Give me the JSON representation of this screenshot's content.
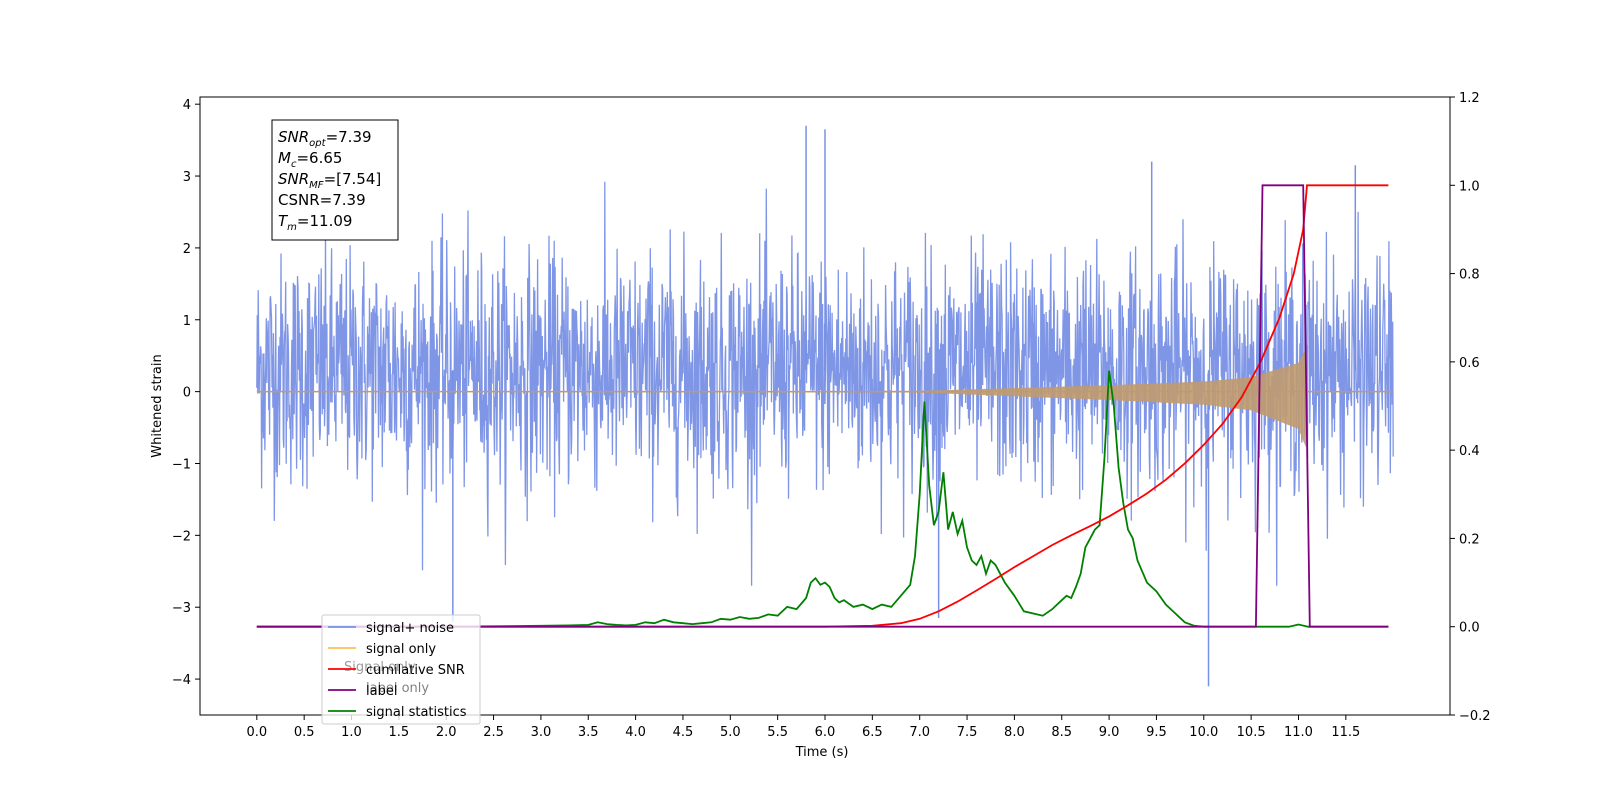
{
  "chart_data": {
    "type": "line",
    "xlabel": "Time (s)",
    "ylabel_left": "Whitened strain",
    "ylabel_right": "",
    "xlim": [
      -0.6,
      12.6
    ],
    "ylim_left": [
      -4.5,
      4.1
    ],
    "ylim_right": [
      -0.2,
      1.2
    ],
    "x_ticks": [
      "0.0",
      "0.5",
      "1.0",
      "1.5",
      "2.0",
      "2.5",
      "3.0",
      "3.5",
      "4.0",
      "4.5",
      "5.0",
      "5.5",
      "6.0",
      "6.5",
      "7.0",
      "7.5",
      "8.0",
      "8.5",
      "9.0",
      "9.5",
      "10.0",
      "10.5",
      "11.0",
      "11.5"
    ],
    "x_tick_values": [
      0,
      0.5,
      1,
      1.5,
      2,
      2.5,
      3,
      3.5,
      4,
      4.5,
      5,
      5.5,
      6,
      6.5,
      7,
      7.5,
      8,
      8.5,
      9,
      9.5,
      10,
      10.5,
      11,
      11.5
    ],
    "y_ticks_left": [
      "−4",
      "−3",
      "−2",
      "−1",
      "0",
      "1",
      "2",
      "3",
      "4"
    ],
    "y_tick_values_left": [
      -4,
      -3,
      -2,
      -1,
      0,
      1,
      2,
      3,
      4
    ],
    "y_ticks_right": [
      "−0.2",
      "0.0",
      "0.2",
      "0.4",
      "0.6",
      "0.8",
      "1.0",
      "1.2"
    ],
    "y_tick_values_right": [
      -0.2,
      0,
      0.2,
      0.4,
      0.6,
      0.8,
      1.0,
      1.2
    ],
    "grid": false,
    "legend_position": "lower-left",
    "series": [
      {
        "name": "signal+ noise",
        "axis": "left",
        "color": "#7890e6",
        "x_range": [
          0,
          12.0
        ],
        "envelope_typical": [
          -2.0,
          2.5
        ],
        "extremes": [
          {
            "x": 5.8,
            "y": 3.7
          },
          {
            "x": 6.0,
            "y": 3.65
          },
          {
            "x": 9.45,
            "y": 3.2
          },
          {
            "x": 11.6,
            "y": 3.15
          },
          {
            "x": 10.05,
            "y": -4.1
          },
          {
            "x": 2.07,
            "y": -3.2
          },
          {
            "x": 7.2,
            "y": -3.15
          }
        ]
      },
      {
        "name": "signal only",
        "axis": "left",
        "color": "#ffbf57",
        "description_amplitude": [
          [
            0,
            0.0
          ],
          [
            7,
            0.01
          ],
          [
            8,
            0.05
          ],
          [
            9,
            0.09
          ],
          [
            10,
            0.14
          ],
          [
            10.5,
            0.2
          ],
          [
            11.0,
            0.4
          ],
          [
            11.08,
            0.6
          ]
        ],
        "x_range": [
          0,
          12.0
        ]
      },
      {
        "name": "cumilative SNR",
        "axis": "right",
        "color": "#ff0000",
        "x": [
          0,
          6.0,
          6.5,
          6.8,
          7.0,
          7.2,
          7.4,
          7.6,
          7.8,
          8.0,
          8.2,
          8.4,
          8.6,
          8.8,
          9.0,
          9.2,
          9.4,
          9.6,
          9.8,
          10.0,
          10.2,
          10.4,
          10.6,
          10.8,
          10.95,
          11.05,
          11.09,
          11.5,
          11.95
        ],
        "values": [
          0,
          0,
          0.002,
          0.008,
          0.018,
          0.035,
          0.057,
          0.082,
          0.108,
          0.135,
          0.16,
          0.185,
          0.207,
          0.228,
          0.25,
          0.275,
          0.302,
          0.333,
          0.37,
          0.412,
          0.46,
          0.52,
          0.6,
          0.7,
          0.8,
          0.9,
          1.0,
          1.0,
          1.0
        ]
      },
      {
        "name": "label",
        "axis": "right",
        "color": "#800080",
        "x": [
          0,
          10.55,
          10.62,
          11.05,
          11.12,
          11.95
        ],
        "values": [
          0,
          0,
          1,
          1,
          0,
          0
        ]
      },
      {
        "name": "signal statistics",
        "axis": "right",
        "color": "#008000",
        "x": [
          0,
          2.0,
          3.0,
          3.3,
          3.5,
          3.6,
          3.7,
          3.8,
          3.9,
          4.0,
          4.1,
          4.2,
          4.3,
          4.4,
          4.5,
          4.6,
          4.7,
          4.8,
          4.9,
          5.0,
          5.1,
          5.2,
          5.3,
          5.4,
          5.5,
          5.6,
          5.7,
          5.8,
          5.85,
          5.9,
          5.95,
          6.0,
          6.05,
          6.1,
          6.15,
          6.2,
          6.3,
          6.4,
          6.5,
          6.6,
          6.7,
          6.8,
          6.9,
          6.95,
          7.0,
          7.05,
          7.1,
          7.15,
          7.2,
          7.25,
          7.3,
          7.35,
          7.4,
          7.45,
          7.5,
          7.55,
          7.6,
          7.65,
          7.7,
          7.75,
          7.8,
          7.9,
          8.0,
          8.1,
          8.2,
          8.3,
          8.4,
          8.5,
          8.55,
          8.6,
          8.65,
          8.7,
          8.75,
          8.8,
          8.85,
          8.9,
          8.95,
          9.0,
          9.05,
          9.1,
          9.15,
          9.2,
          9.25,
          9.3,
          9.4,
          9.5,
          9.6,
          9.7,
          9.8,
          9.9,
          10.0,
          10.5,
          10.9,
          11.0,
          11.1,
          11.2,
          11.5,
          11.95
        ],
        "values": [
          0,
          0,
          0.002,
          0.003,
          0.004,
          0.01,
          0.006,
          0.004,
          0.003,
          0.004,
          0.01,
          0.008,
          0.016,
          0.01,
          0.008,
          0.006,
          0.008,
          0.01,
          0.018,
          0.016,
          0.022,
          0.018,
          0.02,
          0.028,
          0.025,
          0.045,
          0.04,
          0.065,
          0.1,
          0.11,
          0.095,
          0.1,
          0.09,
          0.065,
          0.055,
          0.06,
          0.045,
          0.05,
          0.04,
          0.05,
          0.045,
          0.07,
          0.095,
          0.16,
          0.3,
          0.51,
          0.32,
          0.23,
          0.26,
          0.35,
          0.22,
          0.26,
          0.21,
          0.24,
          0.18,
          0.15,
          0.14,
          0.16,
          0.12,
          0.15,
          0.14,
          0.1,
          0.07,
          0.035,
          0.03,
          0.025,
          0.04,
          0.06,
          0.07,
          0.065,
          0.09,
          0.12,
          0.18,
          0.2,
          0.22,
          0.23,
          0.38,
          0.58,
          0.5,
          0.36,
          0.28,
          0.22,
          0.2,
          0.15,
          0.1,
          0.08,
          0.05,
          0.03,
          0.01,
          0.002,
          0,
          0,
          0,
          0.005,
          0,
          0,
          0,
          0
        ]
      }
    ],
    "annotation": {
      "lines": [
        {
          "main": "SNR",
          "sub": "opt",
          "value": "=7.39"
        },
        {
          "main": "M",
          "sub": "c",
          "value": "=6.65"
        },
        {
          "main": "SNR",
          "sub": "MF",
          "value": "=[7.54]"
        },
        {
          "main": "CSNR",
          "sub": "",
          "value": "=7.39"
        },
        {
          "main": "T",
          "sub": "m",
          "value": "=11.09"
        }
      ]
    }
  },
  "legend_extra_text": [
    "label only",
    "Signal only"
  ]
}
